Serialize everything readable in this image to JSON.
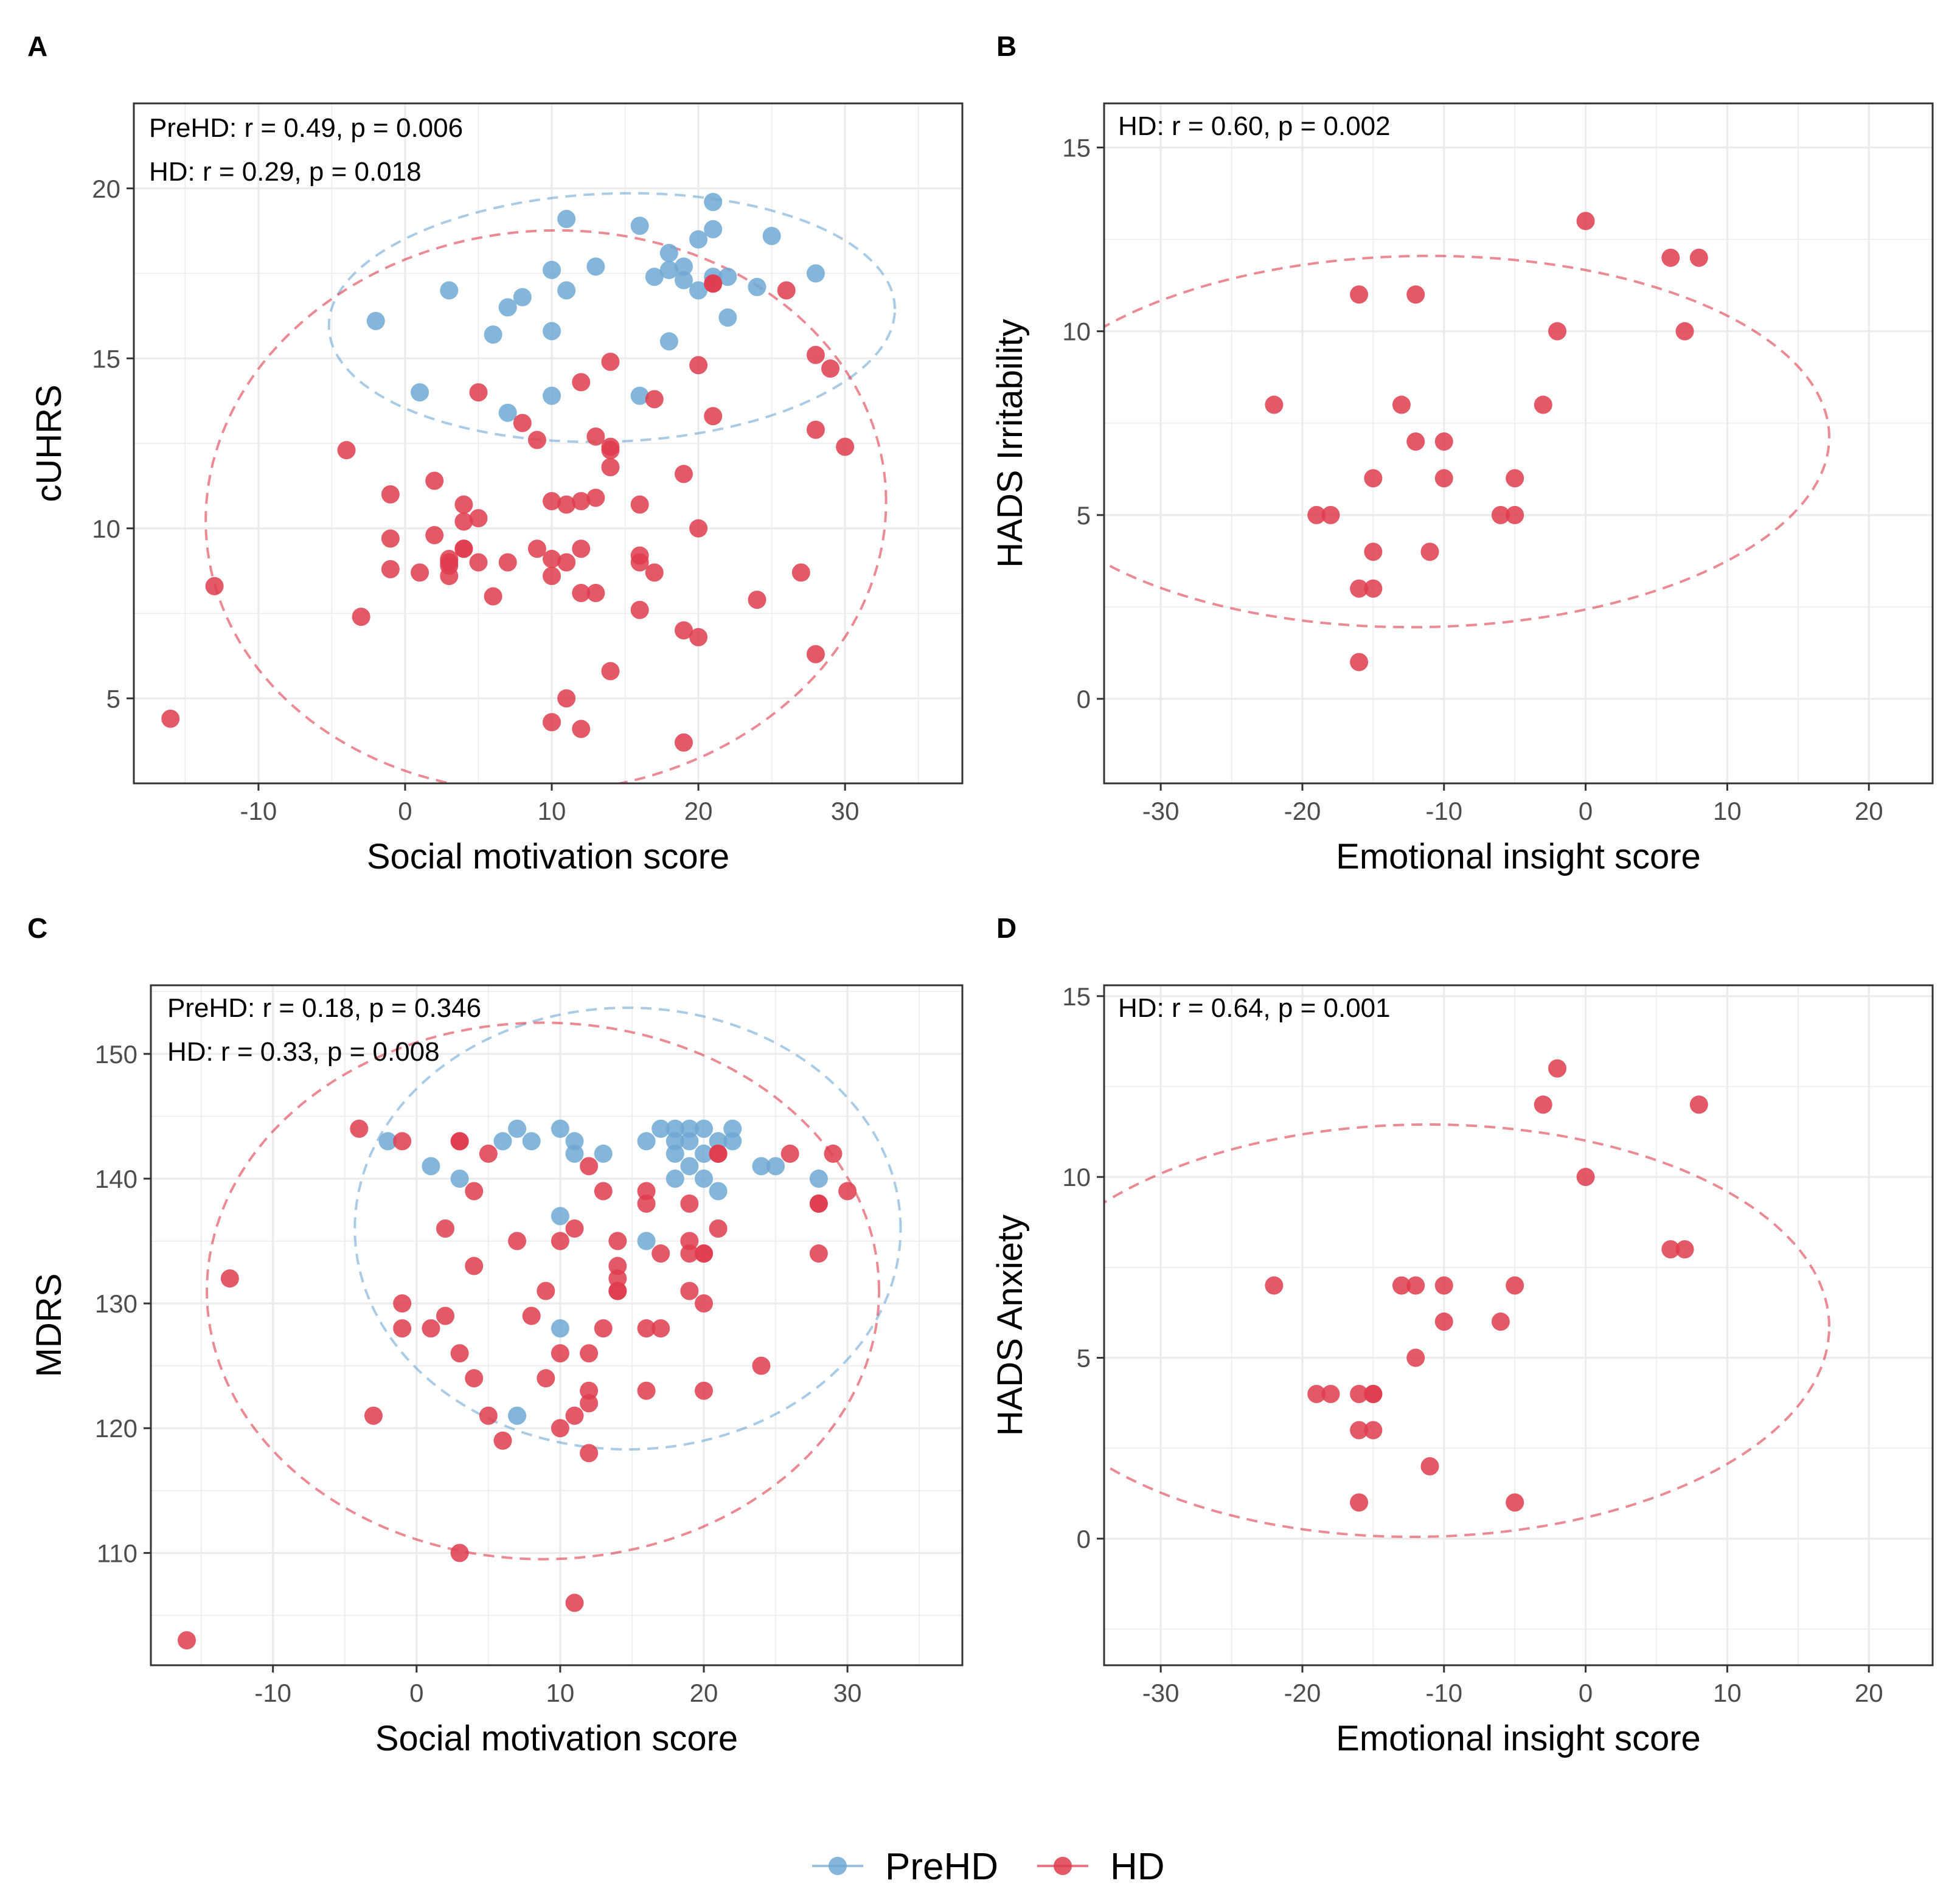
{
  "colors": {
    "PreHD": "#6fa8d3",
    "HD": "#df3c4d",
    "grid": "#ebebeb",
    "frame": "#333333"
  },
  "legend": {
    "items": [
      {
        "name": "PreHD"
      },
      {
        "name": "HD"
      }
    ]
  },
  "chart_data": [
    {
      "panel": "A",
      "type": "scatter",
      "xlabel": "Social motivation score",
      "ylabel": "cUHRS",
      "xlim": [
        -18.5,
        38
      ],
      "ylim": [
        2.5,
        22.5
      ],
      "xticks": [
        -10,
        0,
        10,
        20,
        30
      ],
      "yticks": [
        5,
        10,
        15,
        20
      ],
      "stats": [
        "PreHD: r = 0.49, p = 0.006",
        "HD: r = 0.29, p = 0.018"
      ],
      "series": [
        {
          "name": "PreHD",
          "x": [
            -2,
            1,
            3,
            6,
            7,
            8,
            7,
            10,
            10,
            10,
            11,
            11,
            13,
            16,
            16,
            18,
            18,
            18,
            19,
            19,
            17,
            20,
            20,
            21,
            21,
            21,
            22,
            22,
            24,
            25,
            28
          ],
          "y": [
            16.1,
            14.0,
            17.0,
            15.7,
            16.5,
            16.8,
            13.4,
            17.6,
            15.8,
            13.9,
            19.1,
            17.0,
            17.7,
            18.9,
            13.9,
            18.1,
            17.6,
            15.5,
            17.3,
            17.7,
            17.4,
            18.5,
            17.0,
            17.4,
            18.8,
            19.6,
            16.2,
            17.4,
            17.1,
            18.6,
            17.5
          ],
          "ellipse": {
            "cx": 14.1,
            "cy": 16.2,
            "rx": 19.3,
            "ry": 3.65,
            "angle_deg": 0.74
          }
        },
        {
          "name": "HD",
          "x": [
            -16,
            -13,
            -4,
            -3,
            -1,
            -1,
            -1,
            1,
            2,
            2,
            3,
            3,
            3,
            3,
            4,
            4,
            4,
            4,
            5,
            5,
            5,
            6,
            7,
            8,
            9,
            9,
            10,
            10,
            10,
            10,
            11,
            11,
            11,
            12,
            12,
            12,
            12,
            12,
            13,
            13,
            13,
            14,
            14,
            14,
            14,
            14,
            16,
            16,
            16,
            16,
            17,
            17,
            19,
            19,
            19,
            20,
            20,
            20,
            21,
            21,
            21,
            24,
            26,
            27,
            28,
            28,
            28,
            29,
            30
          ],
          "y": [
            4.4,
            8.3,
            12.3,
            7.4,
            11.0,
            9.7,
            8.8,
            8.7,
            11.4,
            9.8,
            9.1,
            8.9,
            8.6,
            9.0,
            9.4,
            10.2,
            10.7,
            9.4,
            14.0,
            10.3,
            9.0,
            8.0,
            9.0,
            13.1,
            12.6,
            9.4,
            10.8,
            8.6,
            4.3,
            9.1,
            10.7,
            9.0,
            5.0,
            14.3,
            10.8,
            9.4,
            8.1,
            4.1,
            10.9,
            12.7,
            8.1,
            14.9,
            12.4,
            12.3,
            11.8,
            5.8,
            10.7,
            9.2,
            9.0,
            7.6,
            13.8,
            8.7,
            11.6,
            7.0,
            3.7,
            14.8,
            10.0,
            6.8,
            13.3,
            17.2,
            17.2,
            7.9,
            17.0,
            8.7,
            15.1,
            12.9,
            6.3,
            14.7,
            12.4
          ],
          "ellipse": {
            "cx": 9.6,
            "cy": 10.5,
            "rx": 23.2,
            "ry": 8.26,
            "angle_deg": 0.76
          }
        }
      ]
    },
    {
      "panel": "B",
      "type": "scatter",
      "xlabel": "Emotional insight score",
      "ylabel": "HADS Irritability",
      "xlim": [
        -34,
        24.5
      ],
      "ylim": [
        -2.3,
        16.2
      ],
      "xticks": [
        -30,
        -20,
        -10,
        0,
        10,
        20
      ],
      "yticks": [
        0,
        5,
        10,
        15
      ],
      "stats": [
        "HD: r = 0.60, p = 0.002"
      ],
      "series": [
        {
          "name": "HD",
          "x": [
            -22,
            -19,
            -18,
            -16,
            -16,
            -16,
            -15,
            -15,
            -15,
            -13,
            -12,
            -12,
            -11,
            -10,
            -10,
            -6,
            -5,
            -5,
            -3,
            -2,
            0,
            6,
            7,
            8
          ],
          "y": [
            8,
            5,
            5,
            11,
            3,
            1,
            6,
            4,
            3,
            8,
            11,
            7,
            4,
            7,
            6,
            5,
            5,
            6,
            8,
            10,
            13,
            12,
            10,
            12
          ],
          "ellipse": {
            "cx": -11.7,
            "cy": 7.0,
            "rx": 28.9,
            "ry": 5.05,
            "angle_deg": 0.24
          }
        }
      ]
    },
    {
      "panel": "C",
      "type": "scatter",
      "xlabel": "Social motivation score",
      "ylabel": "MDRS",
      "xlim": [
        -18.5,
        38
      ],
      "ylim": [
        101,
        155.5
      ],
      "xticks": [
        -10,
        0,
        10,
        20,
        30
      ],
      "yticks": [
        110,
        120,
        130,
        140,
        150
      ],
      "stats": [
        "PreHD: r = 0.18, p = 0.346",
        "HD: r = 0.33, p = 0.008"
      ],
      "series": [
        {
          "name": "PreHD",
          "x": [
            -2,
            1,
            3,
            6,
            7,
            8,
            7,
            10,
            10,
            10,
            11,
            11,
            13,
            16,
            16,
            17,
            18,
            18,
            18,
            18,
            19,
            19,
            19,
            20,
            20,
            20,
            21,
            21,
            22,
            22,
            24,
            25,
            28
          ],
          "y": [
            143,
            141,
            140,
            143,
            144,
            143,
            121,
            144,
            137,
            128,
            143,
            142,
            142,
            143,
            135,
            144,
            144,
            143,
            142,
            140,
            144,
            141,
            143,
            144,
            140,
            142,
            143,
            139,
            143,
            144,
            141,
            141,
            140
          ],
          "ellipse": {
            "cx": 14.7,
            "cy": 136.0,
            "rx": 19.0,
            "ry": 17.7,
            "angle_deg": 0.0
          }
        },
        {
          "name": "HD",
          "x": [
            -16,
            -13,
            -4,
            -3,
            -1,
            -1,
            -1,
            1,
            2,
            2,
            3,
            3,
            3,
            4,
            4,
            4,
            5,
            5,
            6,
            7,
            8,
            9,
            9,
            10,
            10,
            10,
            11,
            11,
            11,
            12,
            12,
            12,
            12,
            12,
            13,
            13,
            14,
            14,
            14,
            14,
            14,
            16,
            16,
            16,
            16,
            17,
            17,
            19,
            19,
            19,
            19,
            20,
            20,
            20,
            20,
            21,
            21,
            21,
            24,
            26,
            28,
            28,
            28,
            29,
            30,
            3
          ],
          "y": [
            103,
            132,
            144,
            121,
            143,
            130,
            128,
            128,
            136,
            129,
            143,
            126,
            110,
            139,
            133,
            124,
            142,
            121,
            119,
            135,
            129,
            131,
            124,
            135,
            126,
            120,
            136,
            121,
            106,
            141,
            126,
            123,
            122,
            118,
            139,
            128,
            135,
            133,
            132,
            131,
            131,
            139,
            138,
            128,
            123,
            134,
            128,
            138,
            135,
            131,
            134,
            134,
            130,
            123,
            134,
            142,
            142,
            136,
            125,
            142,
            138,
            138,
            134,
            142,
            139,
            143
          ],
          "ellipse": {
            "cx": 8.8,
            "cy": 131.0,
            "rx": 23.4,
            "ry": 21.5,
            "angle_deg": 0.0
          }
        }
      ]
    },
    {
      "panel": "D",
      "type": "scatter",
      "xlabel": "Emotional insight score",
      "ylabel": "HADS Anxiety",
      "xlim": [
        -34,
        24.5
      ],
      "ylim": [
        -3.5,
        15.3
      ],
      "xticks": [
        -30,
        -20,
        -10,
        0,
        10,
        20
      ],
      "yticks": [
        0,
        5,
        10,
        15
      ],
      "stats": [
        "HD: r = 0.64, p = 0.001"
      ],
      "series": [
        {
          "name": "HD",
          "x": [
            -22,
            -19,
            -18,
            -16,
            -16,
            -16,
            -15,
            -15,
            -15,
            -13,
            -12,
            -12,
            -11,
            -10,
            -10,
            -6,
            -5,
            -5,
            -3,
            -2,
            0,
            6,
            7,
            8
          ],
          "y": [
            7,
            4,
            4,
            4,
            3,
            1,
            4,
            4,
            3,
            7,
            7,
            5,
            2,
            7,
            6,
            6,
            7,
            1,
            12,
            13,
            10,
            8,
            8,
            12
          ],
          "ellipse": {
            "cx": -11.7,
            "cy": 5.75,
            "rx": 28.9,
            "ry": 5.7,
            "angle_deg": 0.22
          }
        }
      ]
    }
  ]
}
